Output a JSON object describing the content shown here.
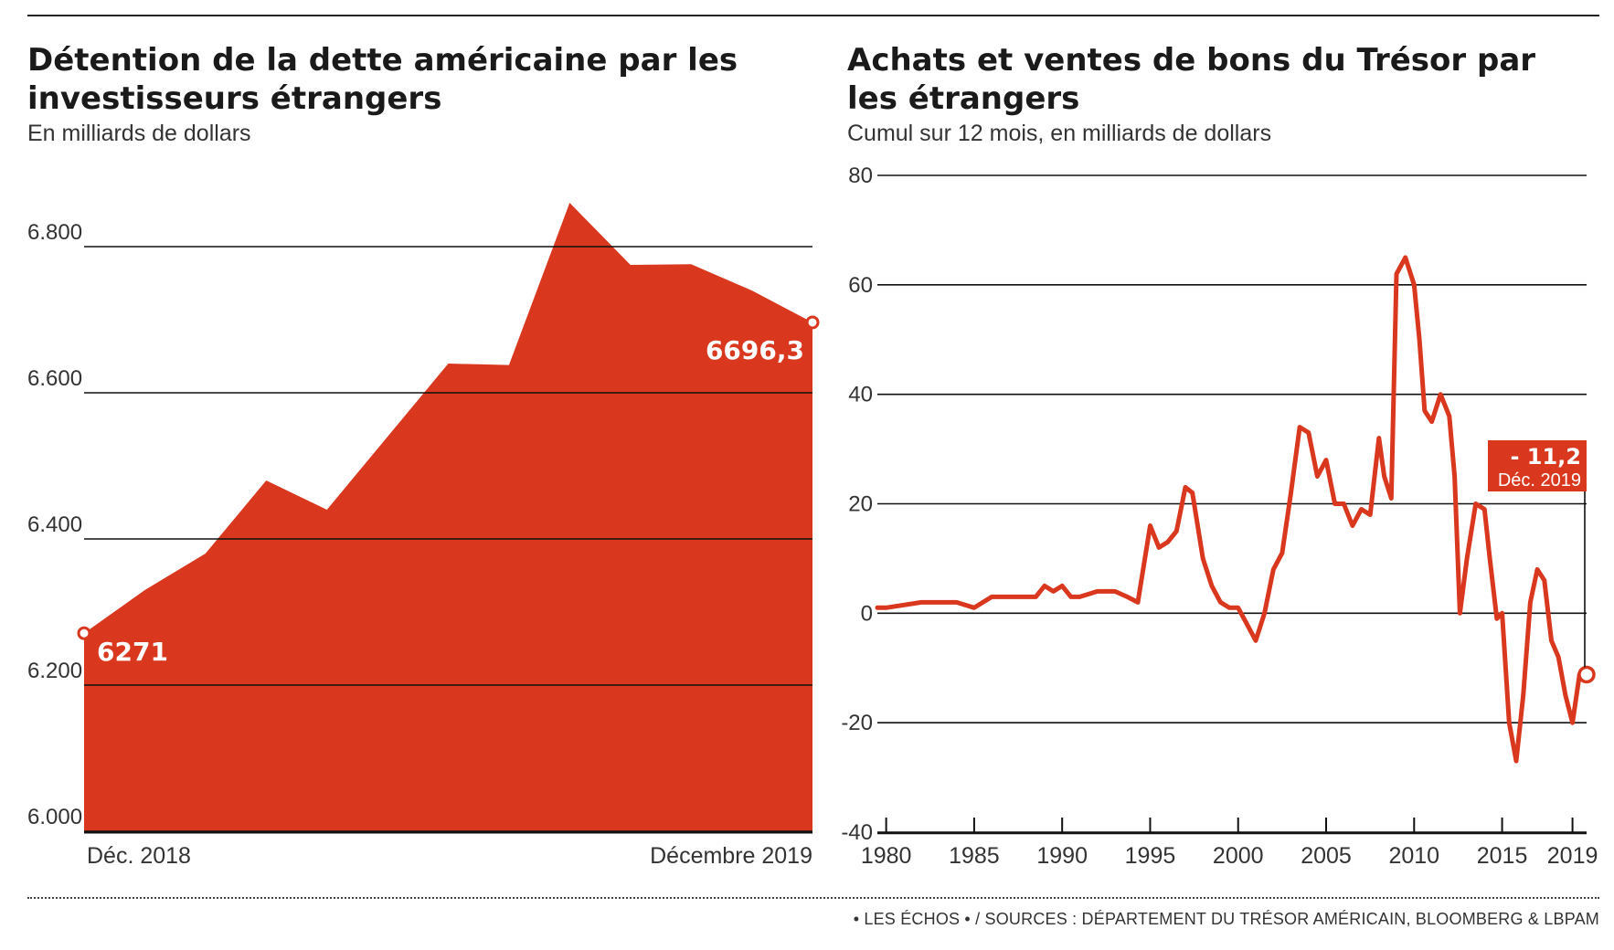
{
  "colors": {
    "accent": "#d9371e",
    "grid": "#111111",
    "text": "#1a1a1a"
  },
  "source": "• LES ÉCHOS • / SOURCES : DÉPARTEMENT DU TRÉSOR AMÉRICAIN,  BLOOMBERG & LBPAM",
  "chart_data": [
    {
      "type": "area",
      "title": "Détention de la dette américaine par les investisseurs étrangers",
      "subtitle": "En milliards de dollars",
      "x_labels": [
        "Déc. 2018",
        "Décembre 2019"
      ],
      "x": [
        "2018-12",
        "2019-01",
        "2019-02",
        "2019-03",
        "2019-04",
        "2019-05",
        "2019-06",
        "2019-07",
        "2019-08",
        "2019-09",
        "2019-10",
        "2019-11",
        "2019-12"
      ],
      "values": [
        6271,
        6330,
        6380,
        6480,
        6440,
        6540,
        6640,
        6638,
        6860,
        6775,
        6776,
        6740,
        6696.3
      ],
      "yticks": [
        6000,
        6200,
        6400,
        6600,
        6800
      ],
      "ytick_labels": [
        "6.000",
        "6.200",
        "6.400",
        "6.600",
        "6.800"
      ],
      "ylim": [
        6000,
        6800
      ],
      "annotations": [
        {
          "label": "6271",
          "value": 6271
        },
        {
          "label": "6696,3",
          "value": 6696.3
        }
      ],
      "grid": true
    },
    {
      "type": "line",
      "title": "Achats et ventes de bons du Trésor par les étrangers",
      "subtitle": "Cumul sur 12 mois, en milliards de dollars",
      "x": [
        1979.5,
        1980,
        1982,
        1984,
        1985,
        1986,
        1987,
        1988,
        1988.5,
        1989,
        1989.5,
        1990,
        1990.5,
        1991,
        1992,
        1993,
        1993.7,
        1994.3,
        1995,
        1995.5,
        1996,
        1996.5,
        1997,
        1997.4,
        1998,
        1998.5,
        1999,
        1999.5,
        2000,
        2000.5,
        2001,
        2001.5,
        2002,
        2002.5,
        2003,
        2003.5,
        2004,
        2004.5,
        2005,
        2005.5,
        2006,
        2006.5,
        2007,
        2007.5,
        2008,
        2008.3,
        2008.7,
        2009,
        2009.5,
        2010,
        2010.3,
        2010.6,
        2011,
        2011.5,
        2012,
        2012.3,
        2012.6,
        2013,
        2013.5,
        2014,
        2014.3,
        2014.7,
        2015,
        2015.4,
        2015.8,
        2016.2,
        2016.6,
        2017,
        2017.4,
        2017.8,
        2018.2,
        2018.6,
        2019,
        2019.4,
        2019.6,
        2019.8
      ],
      "values": [
        1,
        1,
        2,
        2,
        1,
        3,
        3,
        3,
        3,
        5,
        4,
        5,
        3,
        3,
        4,
        4,
        3,
        2,
        16,
        12,
        13,
        15,
        23,
        22,
        10,
        5,
        2,
        1,
        1,
        -2,
        -5,
        0,
        8,
        11,
        22,
        34,
        33,
        25,
        28,
        20,
        20,
        16,
        19,
        18,
        32,
        25,
        21,
        62,
        65,
        60,
        50,
        37,
        35,
        40,
        36,
        25,
        0,
        10,
        20,
        19,
        10,
        -1,
        0,
        -20,
        -27,
        -15,
        2,
        8,
        6,
        -5,
        -8,
        -15,
        -20,
        -11.2,
        -11.2,
        -11.2
      ],
      "xticks": [
        1980,
        1985,
        1990,
        1995,
        2000,
        2005,
        2010,
        2015,
        2019
      ],
      "yticks": [
        -40,
        -20,
        0,
        20,
        40,
        60,
        80
      ],
      "ytick_labels": [
        "-40",
        "-20",
        "0",
        "20",
        "40",
        "60",
        "80"
      ],
      "xlim": [
        1979.5,
        2019.8
      ],
      "ylim": [
        -40,
        80
      ],
      "callout": {
        "value": "- 11,2",
        "date": "Déc. 2019",
        "x": 2019.8,
        "y": -11.2
      },
      "grid": true
    }
  ]
}
